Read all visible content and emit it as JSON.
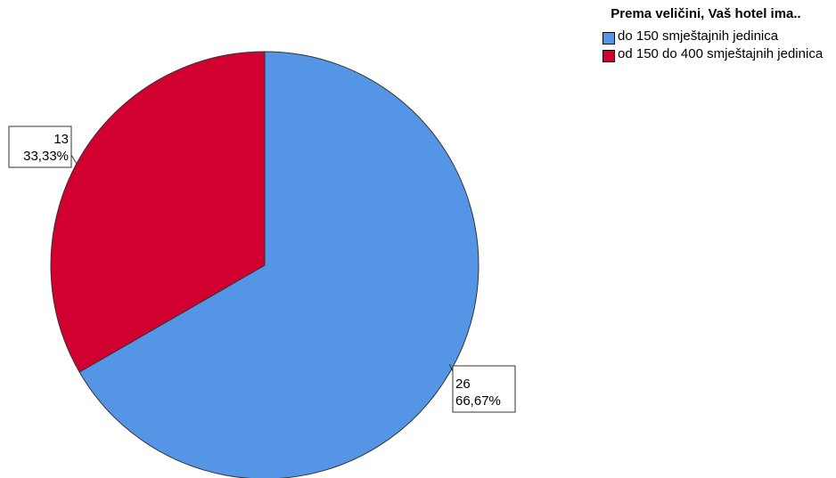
{
  "chart_data": {
    "type": "pie",
    "title": "",
    "legend": {
      "title": "Prema veličini, Vaš hotel ima..",
      "placement": "top-right"
    },
    "categories": [
      "do 150 smještajnih jedinica",
      "od 150 do 400 smještajnih jedinica"
    ],
    "values": [
      26,
      13
    ],
    "percentages": [
      "66,67%",
      "33,33%"
    ],
    "colors": [
      "#5595e5",
      "#d20031"
    ],
    "start_angle_deg": 0,
    "direction": "clockwise"
  }
}
